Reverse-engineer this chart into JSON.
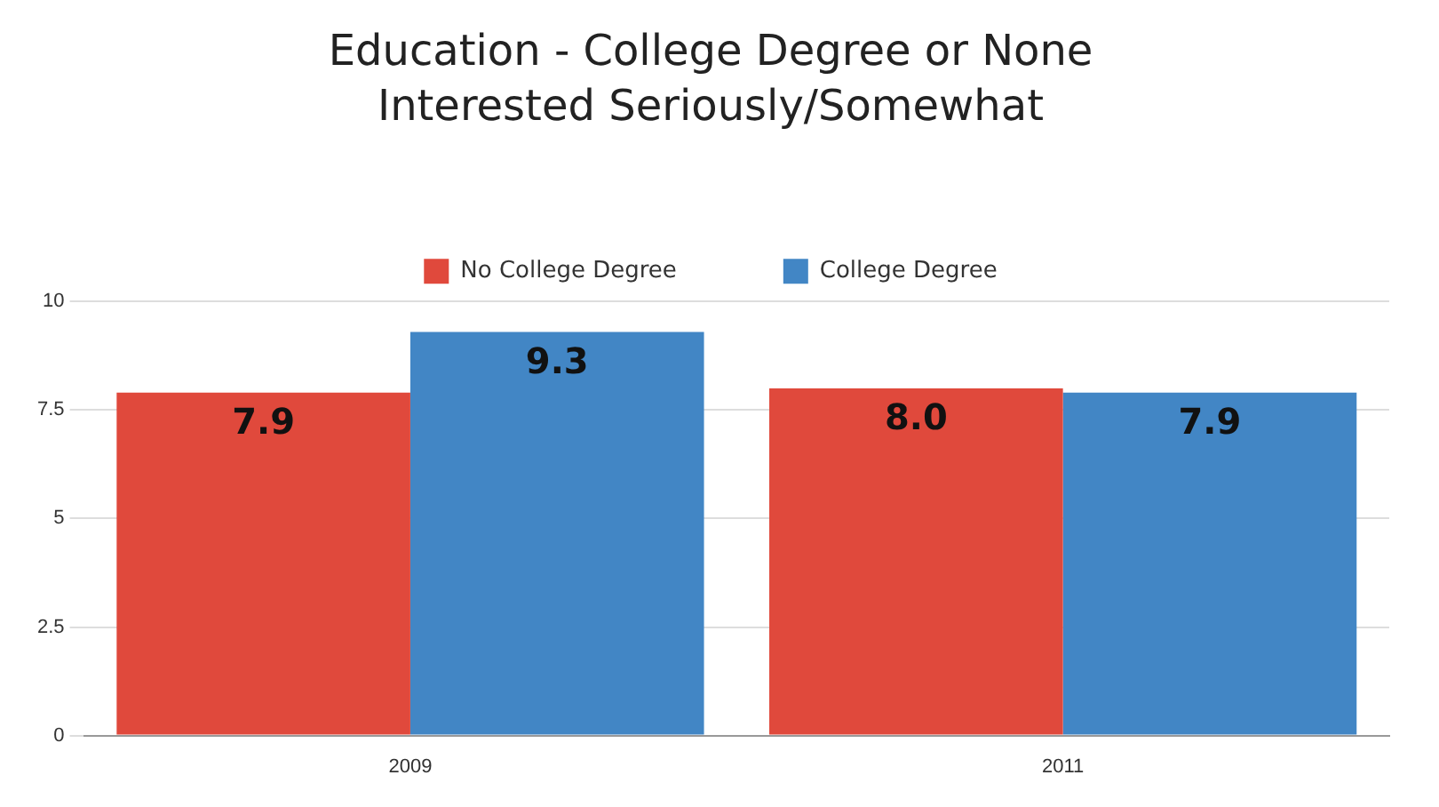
{
  "chart_data": {
    "type": "bar",
    "title": "Education - College Degree or None",
    "subtitle": "Interested Seriously/Somewhat",
    "categories": [
      "2009",
      "2011"
    ],
    "series": [
      {
        "name": "No College Degree",
        "color": "#e0493c",
        "values": [
          7.9,
          8.0
        ],
        "value_labels": [
          "7.9",
          "8.0"
        ]
      },
      {
        "name": "College Degree",
        "color": "#4286c5",
        "values": [
          9.3,
          7.9
        ],
        "value_labels": [
          "9.3",
          "7.9"
        ]
      }
    ],
    "ylim": [
      0,
      10
    ],
    "yticks": [
      0,
      2.5,
      5,
      7.5,
      10
    ],
    "grid": "y",
    "legend": "top"
  }
}
